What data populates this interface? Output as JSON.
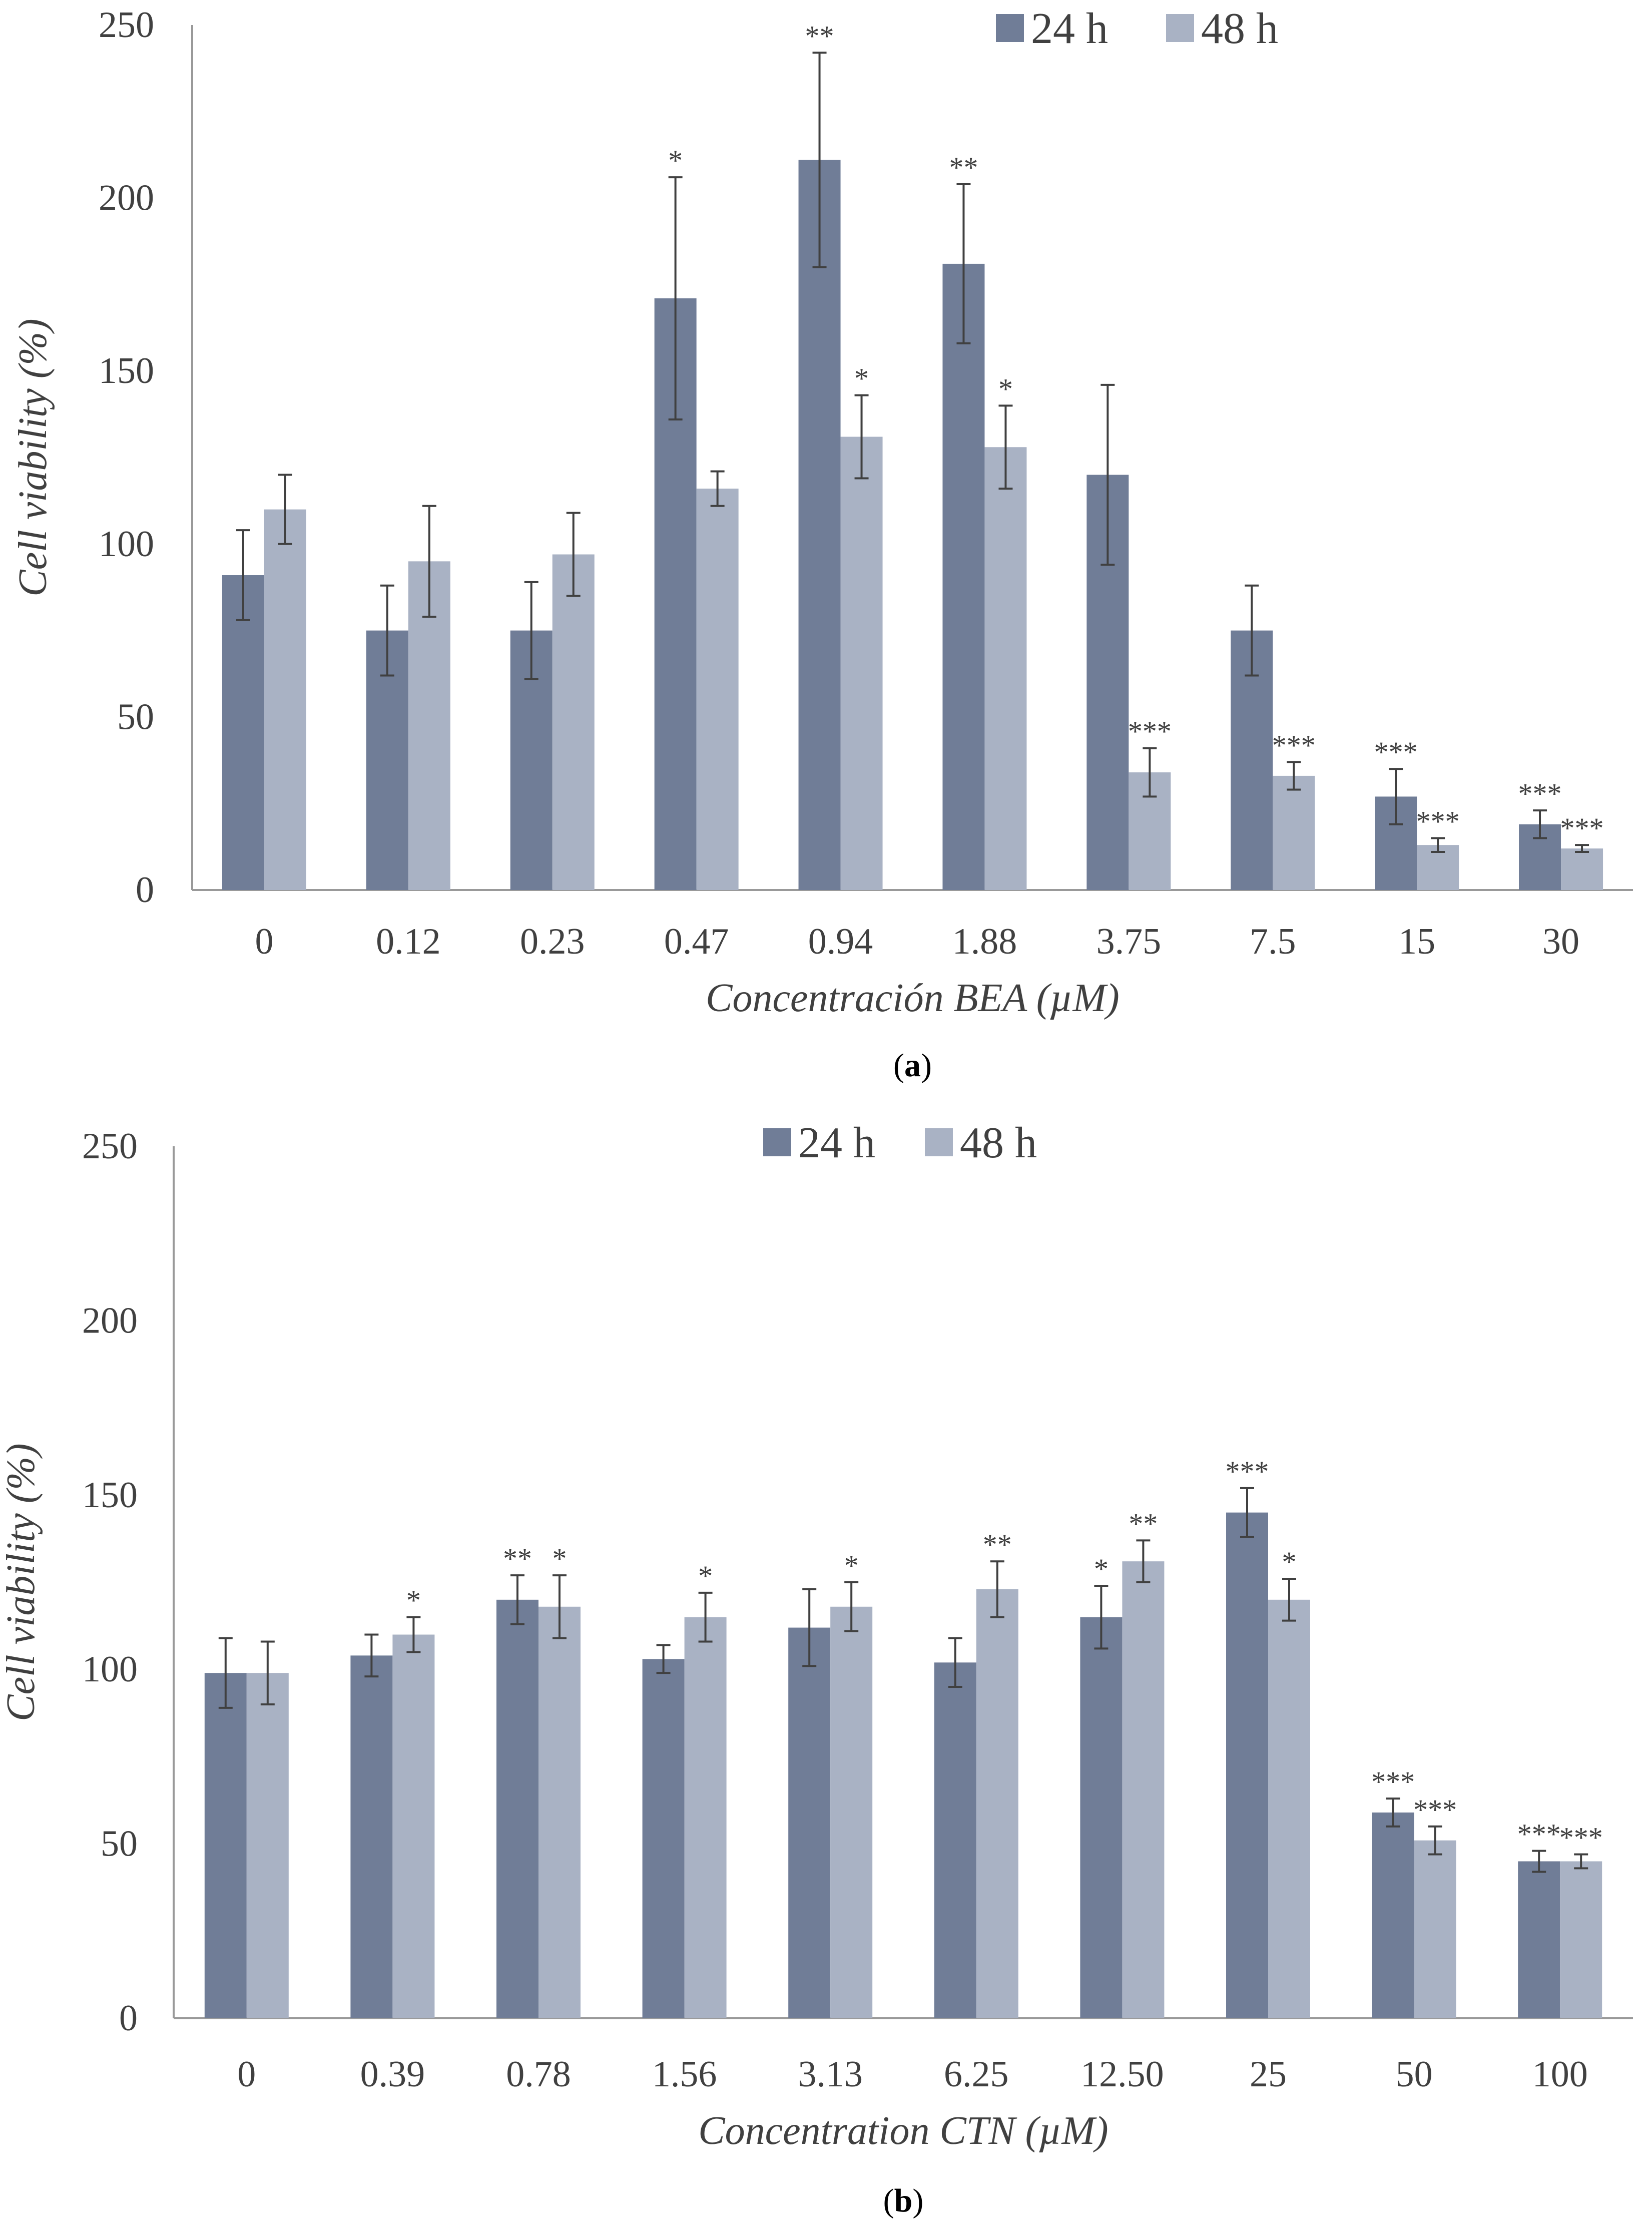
{
  "colors": {
    "series_24h": "#707d97",
    "series_48h": "#a9b2c4",
    "axis": "#999999",
    "error_bar": "#404040",
    "text": "#404040"
  },
  "chart_data": [
    {
      "type": "bar",
      "panel_label": "(a)",
      "panel_letter": "a",
      "xlabel": "Concentración BEA (µM)",
      "ylabel": "Cell viability (%)",
      "ylim": [
        0,
        250
      ],
      "yticks": [
        0,
        50,
        100,
        150,
        200,
        250
      ],
      "categories": [
        "0",
        "0.12",
        "0.23",
        "0.47",
        "0.94",
        "1.88",
        "3.75",
        "7.5",
        "15",
        "30"
      ],
      "legend_position": "top-right",
      "series": [
        {
          "name": "24 h",
          "values": [
            91,
            75,
            75,
            171,
            211,
            181,
            120,
            75,
            27,
            19
          ],
          "errors": [
            13,
            13,
            14,
            35,
            31,
            23,
            26,
            13,
            8,
            4
          ],
          "significance": [
            "",
            "",
            "",
            "*",
            "**",
            "**",
            "",
            "",
            "***",
            "***"
          ]
        },
        {
          "name": "48 h",
          "values": [
            110,
            95,
            97,
            116,
            131,
            128,
            34,
            33,
            13,
            12
          ],
          "errors": [
            10,
            16,
            12,
            5,
            12,
            12,
            7,
            4,
            2,
            1
          ],
          "significance": [
            "",
            "",
            "",
            "",
            "*",
            "*",
            "***",
            "***",
            "***",
            "***"
          ]
        }
      ]
    },
    {
      "type": "bar",
      "panel_label": "(b)",
      "panel_letter": "b",
      "xlabel": "Concentration CTN (µM)",
      "ylabel": "Cell viability (%)",
      "ylim": [
        0,
        250
      ],
      "yticks": [
        0,
        50,
        100,
        150,
        200,
        250
      ],
      "categories": [
        "0",
        "0.39",
        "0.78",
        "1.56",
        "3.13",
        "6.25",
        "12.50",
        "25",
        "50",
        "100"
      ],
      "legend_position": "top-center",
      "series": [
        {
          "name": "24 h",
          "values": [
            99,
            104,
            120,
            103,
            112,
            102,
            115,
            145,
            59,
            45
          ],
          "errors": [
            10,
            6,
            7,
            4,
            11,
            7,
            9,
            7,
            4,
            3
          ],
          "significance": [
            "",
            "",
            "**",
            "",
            "",
            "",
            "*",
            "***",
            "***",
            "***"
          ]
        },
        {
          "name": "48 h",
          "values": [
            99,
            110,
            118,
            115,
            118,
            123,
            131,
            120,
            51,
            45
          ],
          "errors": [
            9,
            5,
            9,
            7,
            7,
            8,
            6,
            6,
            4,
            2
          ],
          "significance": [
            "",
            "*",
            "*",
            "*",
            "*",
            "**",
            "**",
            "*",
            "***",
            "***"
          ]
        }
      ]
    }
  ]
}
